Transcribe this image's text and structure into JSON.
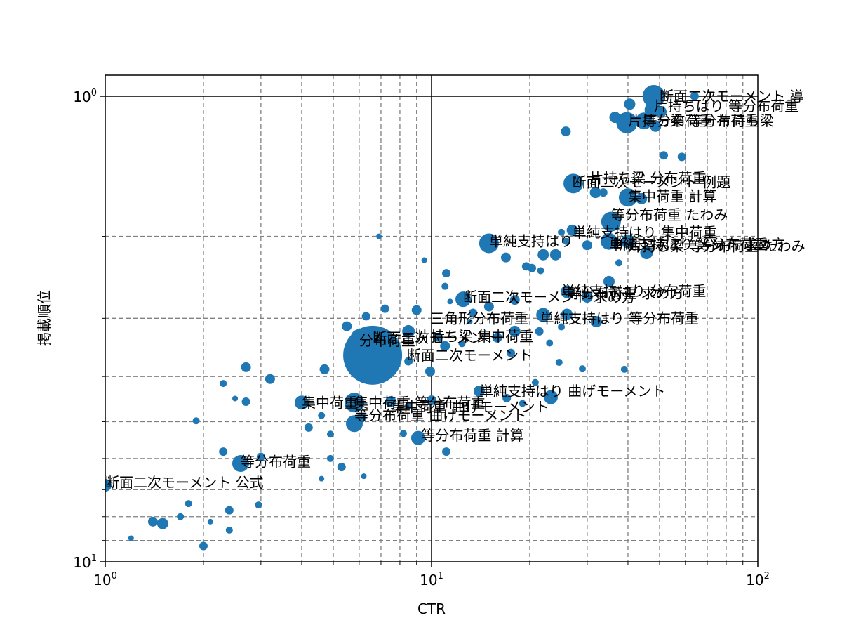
{
  "chart_data": {
    "type": "scatter",
    "title": "",
    "xlabel": "CTR",
    "ylabel": "掲載順位",
    "xscale": "log",
    "yscale": "log",
    "xlim": [
      1,
      100
    ],
    "ylim": [
      10,
      0.9
    ],
    "y_inverted": true,
    "grid": {
      "major": "solid-black",
      "minor": "dashed-gray"
    },
    "legend": null,
    "x_ticks": [
      {
        "value": 1,
        "base": "10",
        "exp": "0"
      },
      {
        "value": 10,
        "base": "10",
        "exp": "1"
      },
      {
        "value": 100,
        "base": "10",
        "exp": "2"
      }
    ],
    "y_ticks": [
      {
        "value": 1,
        "base": "10",
        "exp": "0"
      },
      {
        "value": 10,
        "base": "10",
        "exp": "1"
      }
    ],
    "marker_color": "#1f77b4",
    "points": [
      {
        "x": 48.0,
        "y": 1.0,
        "size": 16
      },
      {
        "x": 40.5,
        "y": 1.04,
        "size": 8
      },
      {
        "x": 64.0,
        "y": 1.0,
        "size": 6
      },
      {
        "x": 47.5,
        "y": 1.07,
        "size": 11
      },
      {
        "x": 50.5,
        "y": 1.08,
        "size": 8
      },
      {
        "x": 36.5,
        "y": 1.11,
        "size": 8
      },
      {
        "x": 39.7,
        "y": 1.14,
        "size": 15
      },
      {
        "x": 44.8,
        "y": 1.13,
        "size": 12
      },
      {
        "x": 48.6,
        "y": 1.16,
        "size": 8
      },
      {
        "x": 25.8,
        "y": 1.19,
        "size": 7
      },
      {
        "x": 51.5,
        "y": 1.34,
        "size": 6
      },
      {
        "x": 58.5,
        "y": 1.35,
        "size": 6
      },
      {
        "x": 27.2,
        "y": 1.54,
        "size": 14
      },
      {
        "x": 31.8,
        "y": 1.61,
        "size": 8
      },
      {
        "x": 33.6,
        "y": 1.61,
        "size": 6
      },
      {
        "x": 40.0,
        "y": 1.65,
        "size": 13
      },
      {
        "x": 44.0,
        "y": 1.66,
        "size": 8
      },
      {
        "x": 35.5,
        "y": 1.86,
        "size": 14
      },
      {
        "x": 27.0,
        "y": 1.94,
        "size": 8
      },
      {
        "x": 25.0,
        "y": 1.96,
        "size": 5
      },
      {
        "x": 25.9,
        "y": 2.05,
        "size": 5
      },
      {
        "x": 35.0,
        "y": 2.05,
        "size": 12
      },
      {
        "x": 40.0,
        "y": 2.05,
        "size": 10
      },
      {
        "x": 45.6,
        "y": 2.17,
        "size": 9
      },
      {
        "x": 30.0,
        "y": 2.09,
        "size": 7
      },
      {
        "x": 15.0,
        "y": 2.07,
        "size": 14
      },
      {
        "x": 16.9,
        "y": 2.22,
        "size": 7
      },
      {
        "x": 22.0,
        "y": 2.19,
        "size": 8
      },
      {
        "x": 24.0,
        "y": 2.19,
        "size": 8
      },
      {
        "x": 19.5,
        "y": 2.32,
        "size": 6
      },
      {
        "x": 20.3,
        "y": 2.34,
        "size": 6
      },
      {
        "x": 21.6,
        "y": 2.37,
        "size": 5
      },
      {
        "x": 37.5,
        "y": 2.28,
        "size": 5
      },
      {
        "x": 35.0,
        "y": 2.5,
        "size": 8
      },
      {
        "x": 26.0,
        "y": 2.63,
        "size": 9
      },
      {
        "x": 30.0,
        "y": 2.7,
        "size": 8
      },
      {
        "x": 12.5,
        "y": 2.73,
        "size": 11
      },
      {
        "x": 11.1,
        "y": 2.4,
        "size": 6
      },
      {
        "x": 11.0,
        "y": 2.56,
        "size": 5
      },
      {
        "x": 15.0,
        "y": 2.83,
        "size": 7
      },
      {
        "x": 18.0,
        "y": 2.74,
        "size": 7
      },
      {
        "x": 22.0,
        "y": 2.95,
        "size": 10
      },
      {
        "x": 26.0,
        "y": 2.94,
        "size": 8
      },
      {
        "x": 25.0,
        "y": 3.13,
        "size": 5
      },
      {
        "x": 32.0,
        "y": 3.05,
        "size": 8
      },
      {
        "x": 13.4,
        "y": 2.92,
        "size": 6
      },
      {
        "x": 9.0,
        "y": 2.88,
        "size": 7
      },
      {
        "x": 7.2,
        "y": 2.86,
        "size": 6
      },
      {
        "x": 6.3,
        "y": 2.97,
        "size": 6
      },
      {
        "x": 5.5,
        "y": 3.12,
        "size": 7
      },
      {
        "x": 6.0,
        "y": 3.3,
        "size": 12
      },
      {
        "x": 6.6,
        "y": 3.6,
        "size": 42
      },
      {
        "x": 8.5,
        "y": 3.2,
        "size": 9
      },
      {
        "x": 10.5,
        "y": 3.3,
        "size": 6
      },
      {
        "x": 11.0,
        "y": 3.44,
        "size": 7
      },
      {
        "x": 12.4,
        "y": 3.4,
        "size": 5
      },
      {
        "x": 15.9,
        "y": 3.3,
        "size": 7
      },
      {
        "x": 18.0,
        "y": 3.2,
        "size": 8
      },
      {
        "x": 21.4,
        "y": 3.2,
        "size": 6
      },
      {
        "x": 23.0,
        "y": 3.39,
        "size": 5
      },
      {
        "x": 17.5,
        "y": 3.56,
        "size": 6
      },
      {
        "x": 24.6,
        "y": 3.73,
        "size": 5
      },
      {
        "x": 39.0,
        "y": 3.86,
        "size": 5
      },
      {
        "x": 9.9,
        "y": 3.9,
        "size": 7
      },
      {
        "x": 8.5,
        "y": 3.71,
        "size": 6
      },
      {
        "x": 4.7,
        "y": 3.86,
        "size": 7
      },
      {
        "x": 2.7,
        "y": 3.82,
        "size": 7
      },
      {
        "x": 3.2,
        "y": 4.05,
        "size": 7
      },
      {
        "x": 2.3,
        "y": 4.14,
        "size": 5
      },
      {
        "x": 2.5,
        "y": 4.46,
        "size": 4
      },
      {
        "x": 2.7,
        "y": 4.53,
        "size": 6
      },
      {
        "x": 4.0,
        "y": 4.55,
        "size": 10
      },
      {
        "x": 4.6,
        "y": 4.85,
        "size": 5
      },
      {
        "x": 5.8,
        "y": 4.55,
        "size": 14
      },
      {
        "x": 6.1,
        "y": 4.9,
        "size": 7
      },
      {
        "x": 7.5,
        "y": 4.53,
        "size": 8
      },
      {
        "x": 8.5,
        "y": 4.62,
        "size": 5
      },
      {
        "x": 10.0,
        "y": 4.5,
        "size": 7
      },
      {
        "x": 14.0,
        "y": 4.3,
        "size": 8
      },
      {
        "x": 17.0,
        "y": 4.45,
        "size": 6
      },
      {
        "x": 19.0,
        "y": 4.57,
        "size": 5
      },
      {
        "x": 20.8,
        "y": 4.12,
        "size": 5
      },
      {
        "x": 23.2,
        "y": 4.43,
        "size": 10
      },
      {
        "x": 29.0,
        "y": 3.85,
        "size": 5
      },
      {
        "x": 4.2,
        "y": 5.15,
        "size": 6
      },
      {
        "x": 4.9,
        "y": 5.32,
        "size": 5
      },
      {
        "x": 5.8,
        "y": 5.05,
        "size": 12
      },
      {
        "x": 8.2,
        "y": 5.3,
        "size": 5
      },
      {
        "x": 9.1,
        "y": 5.42,
        "size": 10
      },
      {
        "x": 1.9,
        "y": 4.98,
        "size": 5
      },
      {
        "x": 2.3,
        "y": 5.8,
        "size": 6
      },
      {
        "x": 2.6,
        "y": 6.15,
        "size": 12
      },
      {
        "x": 3.0,
        "y": 5.95,
        "size": 6
      },
      {
        "x": 4.9,
        "y": 6.0,
        "size": 5
      },
      {
        "x": 5.3,
        "y": 6.26,
        "size": 6
      },
      {
        "x": 4.6,
        "y": 6.63,
        "size": 4
      },
      {
        "x": 6.2,
        "y": 6.55,
        "size": 4
      },
      {
        "x": 11.1,
        "y": 5.8,
        "size": 6
      },
      {
        "x": 1.0,
        "y": 6.85,
        "size": 9
      },
      {
        "x": 1.8,
        "y": 7.5,
        "size": 5
      },
      {
        "x": 2.4,
        "y": 7.75,
        "size": 6
      },
      {
        "x": 2.95,
        "y": 7.55,
        "size": 5
      },
      {
        "x": 1.4,
        "y": 8.2,
        "size": 7
      },
      {
        "x": 1.5,
        "y": 8.28,
        "size": 8
      },
      {
        "x": 1.7,
        "y": 8.0,
        "size": 5
      },
      {
        "x": 2.1,
        "y": 8.2,
        "size": 4
      },
      {
        "x": 2.4,
        "y": 8.55,
        "size": 5
      },
      {
        "x": 1.2,
        "y": 8.9,
        "size": 4
      },
      {
        "x": 2.0,
        "y": 9.25,
        "size": 6
      },
      {
        "x": 6.9,
        "y": 2.0,
        "size": 4
      },
      {
        "x": 9.5,
        "y": 2.25,
        "size": 4
      },
      {
        "x": 11.4,
        "y": 2.76,
        "size": 4
      },
      {
        "x": 13.1,
        "y": 3.05,
        "size": 4
      }
    ],
    "annotations": [
      {
        "text": "断面二次モーメント 導",
        "x": 50.0,
        "y": 1.0
      },
      {
        "text": "片持ちはり 等分布荷重",
        "x": 48.0,
        "y": 1.05
      },
      {
        "text": "片持ち梁 等分布荷重",
        "x": 40.0,
        "y": 1.13
      },
      {
        "text": "等分布荷重 片持ち梁",
        "x": 44.5,
        "y": 1.13
      },
      {
        "text": "断面二次モーメント 例題",
        "x": 27.0,
        "y": 1.53
      },
      {
        "text": "片持ち梁 分布荷重",
        "x": 30.5,
        "y": 1.5
      },
      {
        "text": "集中荷重 計算",
        "x": 40.0,
        "y": 1.64
      },
      {
        "text": "等分布荷重 たわみ",
        "x": 35.5,
        "y": 1.8
      },
      {
        "text": "単純支持はり 集中荷重",
        "x": 27.0,
        "y": 1.96
      },
      {
        "text": "単純支持はり",
        "x": 15.0,
        "y": 2.05
      },
      {
        "text": "単純支持はり 等分布荷重",
        "x": 35.0,
        "y": 2.08
      },
      {
        "text": "断面二次モーメント 求め方",
        "x": 36.0,
        "y": 2.08
      },
      {
        "text": "片持ち梁 等分布荷重 たわみ",
        "x": 40.0,
        "y": 2.1
      },
      {
        "text": "断面二次モーメント 求め方",
        "x": 12.5,
        "y": 2.7
      },
      {
        "text": "単純支持はり 分布荷重",
        "x": 25.0,
        "y": 2.62
      },
      {
        "text": "等分布荷重 求め方",
        "x": 26.0,
        "y": 2.65
      },
      {
        "text": "三角形分布荷重",
        "x": 9.9,
        "y": 3.0
      },
      {
        "text": "単純支持はり 等分布荷重",
        "x": 21.5,
        "y": 3.0
      },
      {
        "text": "片持ち梁 集中荷重",
        "x": 9.0,
        "y": 3.28
      },
      {
        "text": "断面二次モーメント",
        "x": 6.6,
        "y": 3.3
      },
      {
        "text": "分布荷重",
        "x": 6.0,
        "y": 3.35
      },
      {
        "text": "断面二次モーメント",
        "x": 8.4,
        "y": 3.6
      },
      {
        "text": "単純支持はり 曲げモーメント",
        "x": 14.0,
        "y": 4.3
      },
      {
        "text": "集中荷重",
        "x": 4.0,
        "y": 4.55
      },
      {
        "text": "集中荷重 等分布荷重",
        "x": 5.8,
        "y": 4.55
      },
      {
        "text": "集中荷重 曲げモーメント",
        "x": 7.5,
        "y": 4.65
      },
      {
        "text": "等分布荷重 曲げモーメント",
        "x": 5.8,
        "y": 4.85
      },
      {
        "text": "等分布荷重 計算",
        "x": 9.3,
        "y": 5.35
      },
      {
        "text": "等分布荷重",
        "x": 2.6,
        "y": 6.1
      },
      {
        "text": "断面二次モーメント 公式",
        "x": 1.0,
        "y": 6.75
      }
    ]
  }
}
